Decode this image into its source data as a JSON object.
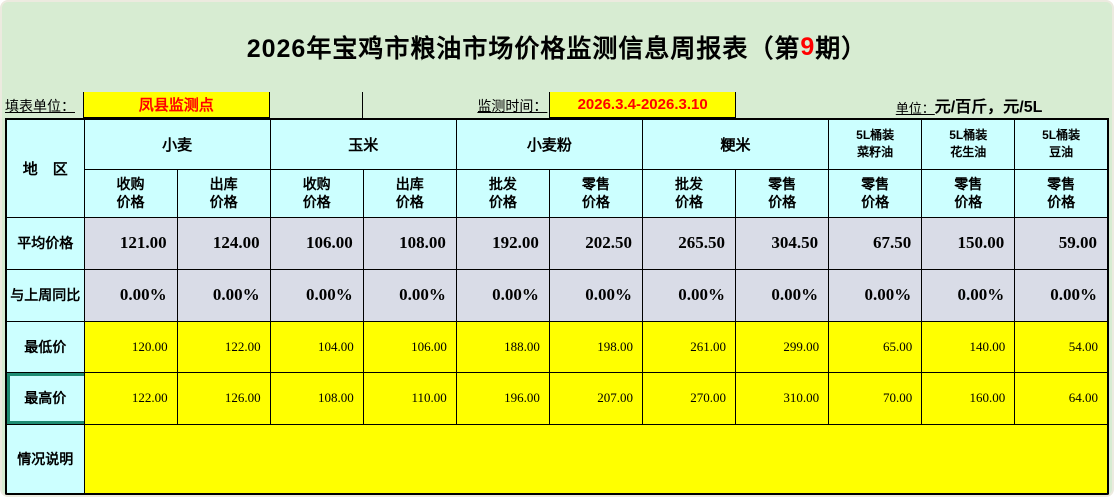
{
  "title": {
    "prefix": "2026年宝鸡市粮油市场价格监测信息周报表（第",
    "issue": "9",
    "suffix": "期）"
  },
  "info": {
    "unit_label": "填表单位：",
    "unit_value": "凤县监测点",
    "time_label": "监测时间：",
    "time_value": "2026.3.4-2026.3.10",
    "price_unit_label": "单位：",
    "price_unit_value": "元/百斤，元/5L"
  },
  "table": {
    "region_header": "地　区",
    "groups": [
      {
        "label": "小麦"
      },
      {
        "label": "玉米"
      },
      {
        "label": "小麦粉"
      },
      {
        "label": "粳米"
      },
      {
        "label": "5L桶装\n菜籽油"
      },
      {
        "label": "5L桶装\n花生油"
      },
      {
        "label": "5L桶装\n豆油"
      }
    ],
    "sub_headers": [
      "收购\n价格",
      "出库\n价格",
      "收购\n价格",
      "出库\n价格",
      "批发\n价格",
      "零售\n价格",
      "批发\n价格",
      "零售\n价格",
      "零售\n价格",
      "零售\n价格",
      "零售\n价格"
    ],
    "rows": [
      {
        "label": "平均价格",
        "values": [
          "121.00",
          "124.00",
          "106.00",
          "108.00",
          "192.00",
          "202.50",
          "265.50",
          "304.50",
          "67.50",
          "150.00",
          "59.00"
        ]
      },
      {
        "label": "与上周同比",
        "values": [
          "0.00%",
          "0.00%",
          "0.00%",
          "0.00%",
          "0.00%",
          "0.00%",
          "0.00%",
          "0.00%",
          "0.00%",
          "0.00%",
          "0.00%"
        ]
      },
      {
        "label": "最低价",
        "values": [
          "120.00",
          "122.00",
          "104.00",
          "106.00",
          "188.00",
          "198.00",
          "261.00",
          "299.00",
          "65.00",
          "140.00",
          "54.00"
        ]
      },
      {
        "label": "最高价",
        "values": [
          "122.00",
          "126.00",
          "108.00",
          "110.00",
          "196.00",
          "207.00",
          "270.00",
          "310.00",
          "70.00",
          "160.00",
          "64.00"
        ]
      },
      {
        "label": "情况说明",
        "note": ""
      }
    ]
  },
  "colors": {
    "page_background": "#D7ECD2",
    "header_cell": "#CCFFFF",
    "average_row": "#D9DCE7",
    "highlight_yellow": "#FFFF00",
    "accent_red": "#FF0000",
    "selection_teal": "#1E8C72"
  }
}
